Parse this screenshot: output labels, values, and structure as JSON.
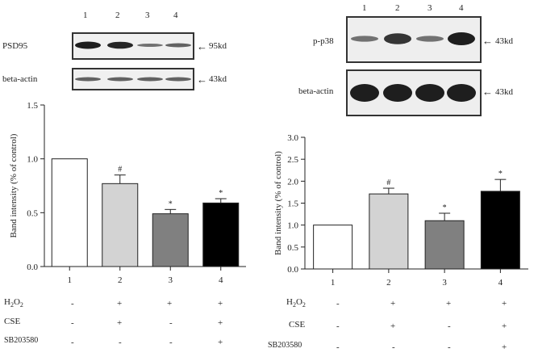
{
  "left": {
    "lanes": [
      "1",
      "2",
      "3",
      "4"
    ],
    "blots": [
      {
        "name": "PSD95",
        "size": "95kd",
        "intensities": [
          1.0,
          0.95,
          0.45,
          0.55
        ]
      },
      {
        "name": "beta-actin",
        "size": "43kd",
        "intensities": [
          0.55,
          0.55,
          0.55,
          0.55
        ]
      }
    ]
  },
  "right": {
    "lanes": [
      "1",
      "2",
      "3",
      "4"
    ],
    "blots": [
      {
        "name": "p-p38",
        "size": "43kd",
        "intensities": [
          0.45,
          0.85,
          0.45,
          1.0
        ]
      },
      {
        "name": "beta-actin",
        "size": "43kd",
        "intensities": [
          1.0,
          1.0,
          1.0,
          1.0
        ]
      }
    ]
  },
  "treatments": {
    "rows": [
      "H2O2",
      "CSE",
      "SB203580"
    ],
    "left_rows": [
      [
        "-",
        "+",
        "+",
        "+"
      ],
      [
        "-",
        "+",
        "-",
        "+"
      ],
      [
        "-",
        "-",
        "-",
        "+"
      ]
    ],
    "right_rows": [
      [
        "-",
        "+",
        "+",
        "+"
      ],
      [
        "-",
        "+",
        "-",
        "+"
      ],
      [
        "-",
        "-",
        "-",
        "+"
      ]
    ]
  },
  "colors": {
    "bar1": "#ffffff",
    "bar2": "#d3d3d3",
    "bar3": "#808080",
    "bar4": "#000000"
  },
  "chart_data": [
    {
      "type": "bar",
      "categories": [
        "1",
        "2",
        "3",
        "4"
      ],
      "values": [
        1.0,
        0.77,
        0.49,
        0.59
      ],
      "errors": [
        0,
        0.08,
        0.04,
        0.04
      ],
      "annotations": [
        "",
        "#",
        "*",
        "*"
      ],
      "ylabel": "Band intensity (% of control)",
      "ylim": [
        0,
        1.5
      ],
      "yticks": [
        "0.0",
        "0.5",
        "1.0",
        "1.5"
      ],
      "ytick_values": [
        0,
        0.5,
        1.0,
        1.5
      ],
      "grid": false
    },
    {
      "type": "bar",
      "categories": [
        "1",
        "2",
        "3",
        "4"
      ],
      "values": [
        1.0,
        1.71,
        1.1,
        1.77
      ],
      "errors": [
        0,
        0.13,
        0.17,
        0.27
      ],
      "annotations": [
        "",
        "#",
        "*",
        "*"
      ],
      "ylabel": "Band intensity (% of control)",
      "ylim": [
        0,
        3.0
      ],
      "yticks": [
        "0.0",
        "0.5",
        "1.0",
        "1.5",
        "2.0",
        "2.5",
        "3.0"
      ],
      "ytick_values": [
        0,
        0.5,
        1.0,
        1.5,
        2.0,
        2.5,
        3.0
      ],
      "grid": false
    }
  ]
}
